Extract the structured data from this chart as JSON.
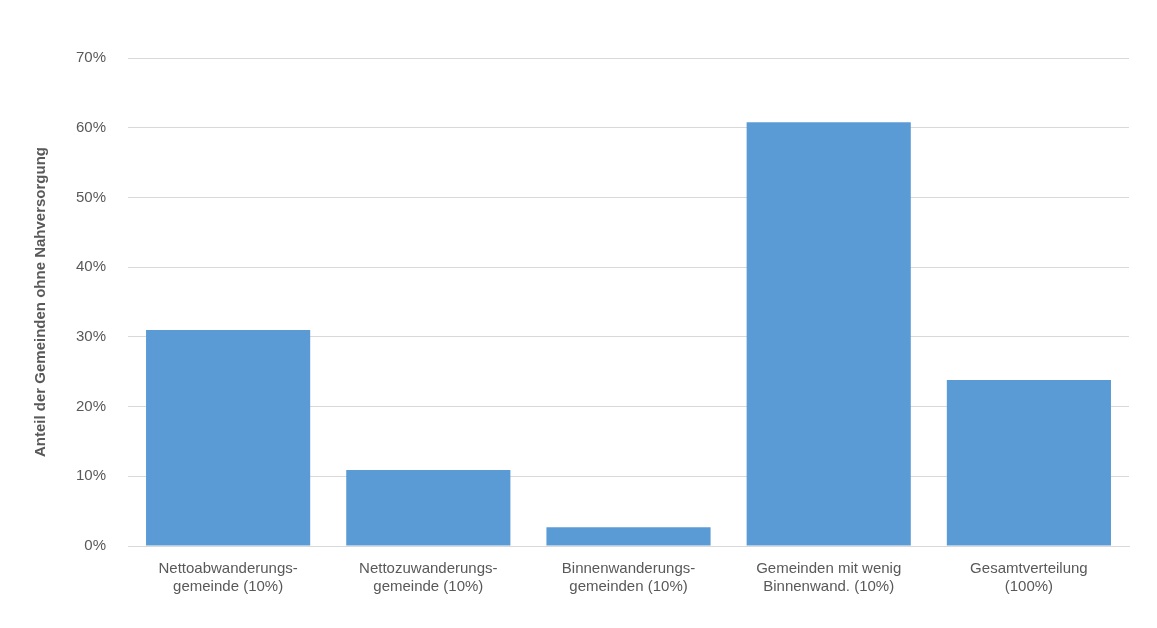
{
  "chart_data": {
    "type": "bar",
    "ylabel": "Anteil der Gemeinden ohne Nahversorgung",
    "categories": [
      "Nettoabwanderungs-\ngemeinde (10%)",
      "Nettozuwanderungs-\ngemeinde (10%)",
      "Binnenwanderungs-\ngemeinden (10%)",
      "Gemeinden mit wenig\nBinnenwand. (10%)",
      "Gesamtverteilung\n(100%)"
    ],
    "values": [
      31,
      10.9,
      2.7,
      60.8,
      23.8
    ],
    "color": "#5b9bd5",
    "ylim": [
      0,
      70
    ],
    "yticks": [
      {
        "value": 0,
        "label": "0%"
      },
      {
        "value": 10,
        "label": "10%"
      },
      {
        "value": 20,
        "label": "20%"
      },
      {
        "value": 30,
        "label": "30%"
      },
      {
        "value": 40,
        "label": "40%"
      },
      {
        "value": 50,
        "label": "50%"
      },
      {
        "value": 60,
        "label": "60%"
      },
      {
        "value": 70,
        "label": "70%"
      }
    ],
    "grid": "y",
    "legend": false
  }
}
